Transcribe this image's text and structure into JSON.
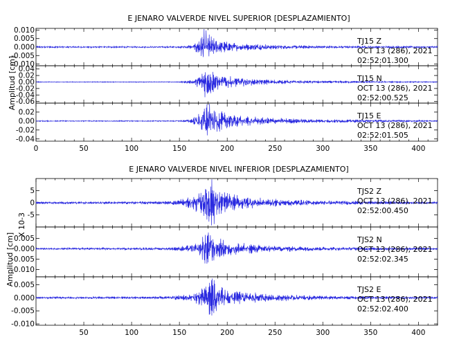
{
  "chart_data": [
    {
      "type": "line",
      "title": "E JENARO VALVERDE NIVEL SUPERIOR [DESPLAZAMIENTO]",
      "ylabel": "Amplitud [cm]",
      "xlabel": "",
      "xlim": [
        0,
        420
      ],
      "x_ticks": [
        "0",
        "50",
        "100",
        "150",
        "200",
        "250",
        "300",
        "350",
        "400"
      ],
      "color": "#2a2ae0",
      "grid": false,
      "panels": [
        {
          "station": "TJ15",
          "component": "Z",
          "date": "OCT 13 (286), 2021",
          "time": "02:52:01.300",
          "ylim": [
            -0.011,
            0.011
          ],
          "y_ticks": [
            "0.010",
            "0.005",
            "0.000",
            "-0.005",
            "-0.010"
          ],
          "waveform": [
            {
              "t": 0,
              "a": 0.0004
            },
            {
              "t": 150,
              "a": 0.0004
            },
            {
              "t": 165,
              "a": 0.0015
            },
            {
              "t": 172,
              "a": 0.006
            },
            {
              "t": 176,
              "a": 0.0105
            },
            {
              "t": 180,
              "a": 0.007
            },
            {
              "t": 186,
              "a": 0.0045
            },
            {
              "t": 195,
              "a": 0.003
            },
            {
              "t": 215,
              "a": 0.002
            },
            {
              "t": 250,
              "a": 0.0012
            },
            {
              "t": 300,
              "a": 0.0007
            },
            {
              "t": 420,
              "a": 0.0004
            }
          ]
        },
        {
          "station": "TJ15",
          "component": "N",
          "date": "OCT 13 (286), 2021",
          "time": "02:52:00.525",
          "ylim": [
            -0.065,
            0.05
          ],
          "y_ticks": [
            "0.04",
            "0.02",
            "0.00",
            "-0.02",
            "-0.04",
            "-0.06"
          ],
          "waveform": [
            {
              "t": 0,
              "a": 0.001
            },
            {
              "t": 150,
              "a": 0.001
            },
            {
              "t": 165,
              "a": 0.006
            },
            {
              "t": 172,
              "a": 0.025
            },
            {
              "t": 177,
              "a": 0.042
            },
            {
              "t": 182,
              "a": 0.035
            },
            {
              "t": 190,
              "a": 0.022
            },
            {
              "t": 205,
              "a": 0.015
            },
            {
              "t": 230,
              "a": 0.008
            },
            {
              "t": 280,
              "a": 0.004
            },
            {
              "t": 420,
              "a": 0.001
            }
          ]
        },
        {
          "station": "TJ15",
          "component": "E",
          "date": "OCT 13 (286), 2021",
          "time": "02:52:01.505",
          "ylim": [
            -0.045,
            0.04
          ],
          "y_ticks": [
            "0.02",
            "0.00",
            "-0.02",
            "-0.04"
          ],
          "waveform": [
            {
              "t": 0,
              "a": 0.001
            },
            {
              "t": 150,
              "a": 0.001
            },
            {
              "t": 162,
              "a": 0.004
            },
            {
              "t": 170,
              "a": 0.014
            },
            {
              "t": 176,
              "a": 0.03
            },
            {
              "t": 180,
              "a": 0.037
            },
            {
              "t": 186,
              "a": 0.025
            },
            {
              "t": 200,
              "a": 0.014
            },
            {
              "t": 230,
              "a": 0.008
            },
            {
              "t": 280,
              "a": 0.004
            },
            {
              "t": 420,
              "a": 0.001
            }
          ]
        }
      ]
    },
    {
      "type": "line",
      "title": "E JENARO VALVERDE NIVEL INFERIOR [DESPLAZAMIENTO]",
      "ylabel": "Amplitud [cm]",
      "ylabel_extra": "X 10-3",
      "xlabel": "",
      "xlim": [
        0,
        420
      ],
      "x_ticks": [
        "50",
        "100",
        "150",
        "200",
        "250",
        "300",
        "350",
        "400"
      ],
      "color": "#2a2ae0",
      "grid": false,
      "panels": [
        {
          "station": "TJS2",
          "component": "Z",
          "date": "OCT 13 (286), 2021",
          "time": "02:52:00.450",
          "ylim": [
            -10,
            10
          ],
          "y_ticks": [
            "5",
            "0",
            "-5"
          ],
          "waveform": [
            {
              "t": 0,
              "a": 0.4
            },
            {
              "t": 80,
              "a": 0.5
            },
            {
              "t": 140,
              "a": 0.6
            },
            {
              "t": 160,
              "a": 2
            },
            {
              "t": 172,
              "a": 4
            },
            {
              "t": 180,
              "a": 8
            },
            {
              "t": 184,
              "a": 9
            },
            {
              "t": 190,
              "a": 5
            },
            {
              "t": 205,
              "a": 3
            },
            {
              "t": 240,
              "a": 1.5
            },
            {
              "t": 300,
              "a": 0.8
            },
            {
              "t": 420,
              "a": 0.4
            }
          ]
        },
        {
          "station": "TJS2",
          "component": "N",
          "date": "OCT 13 (286), 2021",
          "time": "02:52:02.345",
          "ylim": [
            -0.0135,
            0.0105
          ],
          "y_ticks": [
            "0.005",
            "0.000",
            "-0.005",
            "-0.010"
          ],
          "waveform": [
            {
              "t": 0,
              "a": 0.0004
            },
            {
              "t": 140,
              "a": 0.0006
            },
            {
              "t": 160,
              "a": 0.0015
            },
            {
              "t": 172,
              "a": 0.003
            },
            {
              "t": 179,
              "a": 0.009
            },
            {
              "t": 182,
              "a": 0.01
            },
            {
              "t": 188,
              "a": 0.005
            },
            {
              "t": 200,
              "a": 0.003
            },
            {
              "t": 240,
              "a": 0.0015
            },
            {
              "t": 300,
              "a": 0.0008
            },
            {
              "t": 420,
              "a": 0.0004
            }
          ]
        },
        {
          "station": "TJS2",
          "component": "E",
          "date": "OCT 13 (286), 2021",
          "time": "02:52:02.400",
          "ylim": [
            -0.0105,
            0.008
          ],
          "y_ticks": [
            "0.005",
            "0.000",
            "-0.005",
            "-0.010"
          ],
          "waveform": [
            {
              "t": 0,
              "a": 0.0003
            },
            {
              "t": 140,
              "a": 0.0005
            },
            {
              "t": 160,
              "a": 0.0012
            },
            {
              "t": 172,
              "a": 0.0025
            },
            {
              "t": 180,
              "a": 0.006
            },
            {
              "t": 184,
              "a": 0.008
            },
            {
              "t": 190,
              "a": 0.004
            },
            {
              "t": 205,
              "a": 0.0025
            },
            {
              "t": 240,
              "a": 0.0013
            },
            {
              "t": 300,
              "a": 0.0007
            },
            {
              "t": 420,
              "a": 0.0003
            }
          ]
        }
      ]
    }
  ]
}
